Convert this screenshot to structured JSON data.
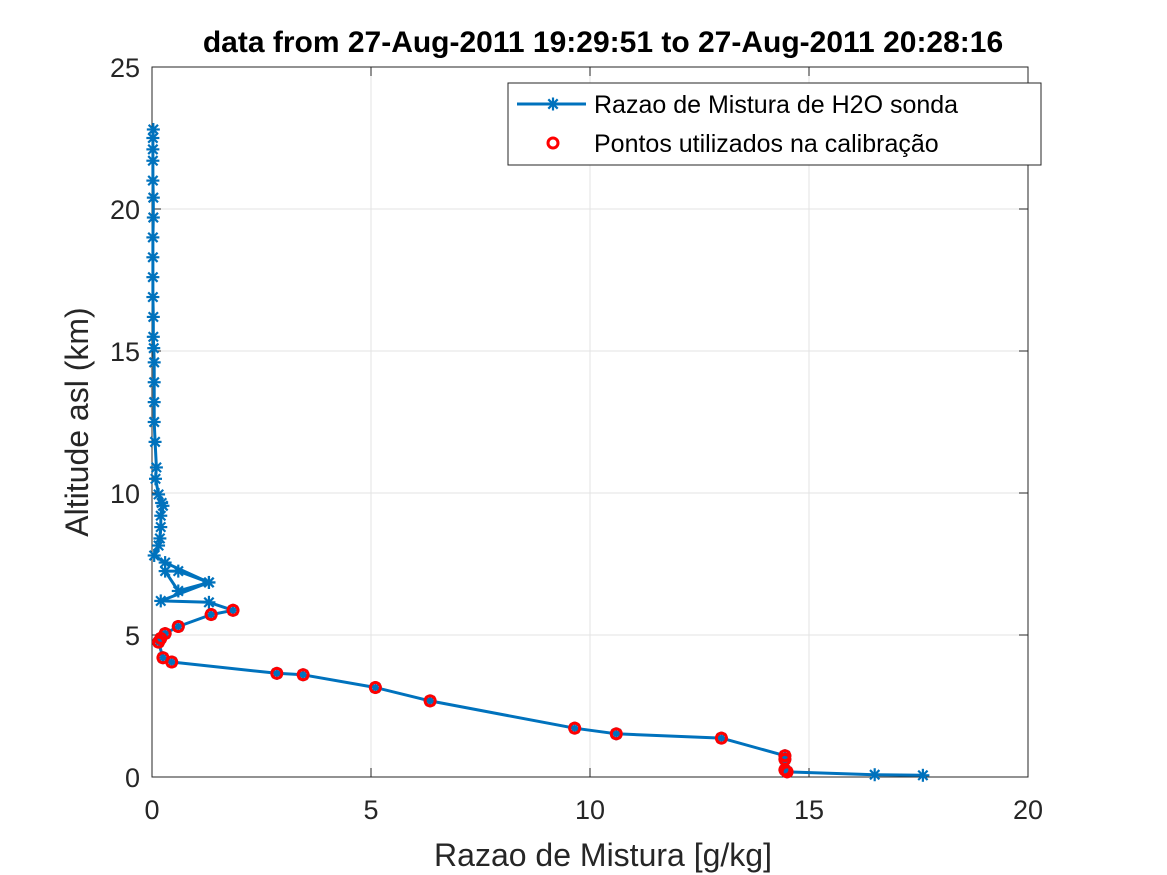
{
  "chart_data": {
    "type": "line",
    "title": "data from 27-Aug-2011 19:29:51 to 27-Aug-2011 20:28:16",
    "xlabel": "Razao de Mistura [g/kg]",
    "ylabel": "Altitude asl (km)",
    "xlim": [
      0,
      20
    ],
    "ylim": [
      0,
      25
    ],
    "xticks": [
      "0",
      "5",
      "10",
      "15",
      "20"
    ],
    "yticks": [
      "0",
      "5",
      "10",
      "15",
      "20",
      "25"
    ],
    "grid": true,
    "legend_position": "top-right",
    "colors": {
      "series1": "#0072BD",
      "series2": "#FF0000"
    },
    "series": [
      {
        "name": "Razao de Mistura de H2O sonda",
        "style": "line-asterisk",
        "x": [
          17.6,
          16.5,
          14.5,
          14.45,
          14.45,
          14.45,
          13.0,
          10.6,
          9.65,
          6.35,
          5.1,
          3.45,
          2.85,
          0.45,
          0.25,
          0.15,
          0.2,
          0.3,
          0.6,
          1.35,
          1.85,
          1.3,
          0.2,
          1.3,
          0.6,
          0.3,
          0.6,
          1.3,
          0.3,
          0.05,
          0.15,
          0.18,
          0.2,
          0.2,
          0.25,
          0.22,
          0.15,
          0.08,
          0.1,
          0.07,
          0.05,
          0.05,
          0.05,
          0.05,
          0.04,
          0.03,
          0.03,
          0.02,
          0.02,
          0.02,
          0.02,
          0.03,
          0.03,
          0.02,
          0.02,
          0.02,
          0.02,
          0.03
        ],
        "y": [
          0.06,
          0.08,
          0.18,
          0.25,
          0.62,
          0.75,
          1.37,
          1.52,
          1.72,
          2.68,
          3.15,
          3.6,
          3.65,
          4.05,
          4.2,
          4.75,
          4.88,
          5.05,
          5.3,
          5.72,
          5.87,
          6.15,
          6.2,
          6.85,
          6.55,
          7.25,
          7.25,
          6.85,
          7.55,
          7.8,
          8.15,
          8.4,
          8.8,
          9.2,
          9.55,
          9.65,
          9.95,
          10.5,
          10.9,
          11.8,
          12.5,
          13.2,
          13.9,
          14.6,
          15.1,
          15.5,
          16.2,
          16.9,
          17.6,
          18.3,
          19.0,
          19.7,
          20.4,
          21.0,
          21.7,
          22.1,
          22.5,
          22.8
        ]
      },
      {
        "name": "Pontos utilizados na calibração",
        "style": "marker-circle",
        "x": [
          14.5,
          14.45,
          14.45,
          14.45,
          13.0,
          10.6,
          9.65,
          6.35,
          5.1,
          3.45,
          2.85,
          0.45,
          0.25,
          0.15,
          0.2,
          0.3,
          0.6,
          1.35,
          1.85
        ],
        "y": [
          0.18,
          0.25,
          0.62,
          0.75,
          1.37,
          1.52,
          1.72,
          2.68,
          3.15,
          3.6,
          3.65,
          4.05,
          4.2,
          4.75,
          4.88,
          5.05,
          5.3,
          5.72,
          5.87
        ]
      }
    ]
  }
}
